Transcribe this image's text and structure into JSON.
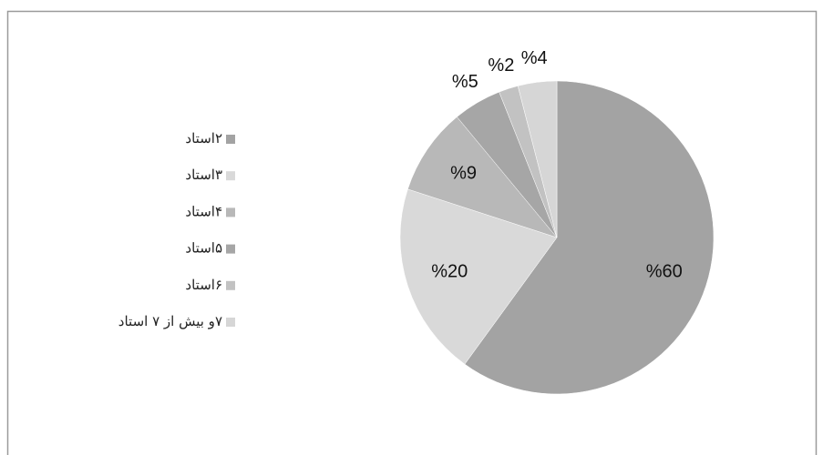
{
  "chart_data": {
    "type": "pie",
    "categories": [
      "۲استاد",
      "۳استاد",
      "۴استاد",
      "۵استاد",
      "۶استاد",
      "۷و بیش از ۷ استاد"
    ],
    "values": [
      60,
      20,
      9,
      5,
      2,
      4
    ],
    "value_labels": [
      "%60",
      "%20",
      "%9",
      "%5",
      "%2",
      "%4"
    ],
    "colors": [
      "#a3a3a3",
      "#d9d9d9",
      "#b8b8b8",
      "#a6a6a6",
      "#c2c2c2",
      "#d6d6d6"
    ],
    "legend": "left"
  }
}
